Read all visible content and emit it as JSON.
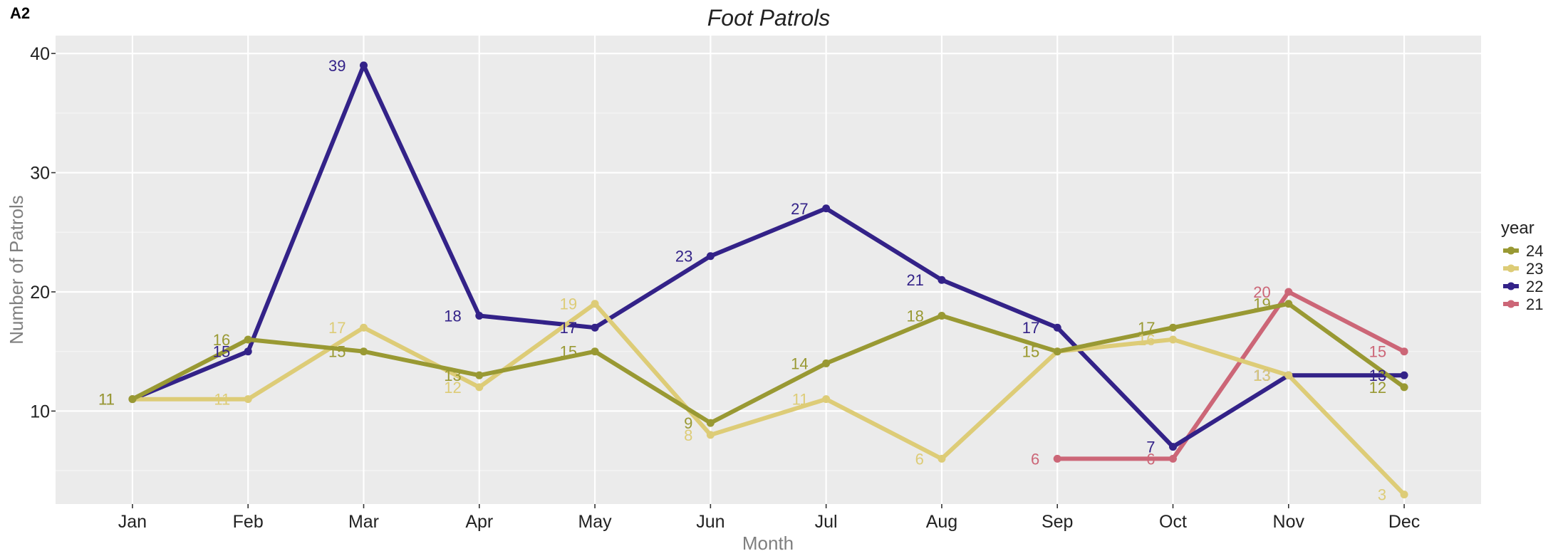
{
  "panel_tag": "A2",
  "chart_data": {
    "type": "line",
    "title": "Foot Patrols",
    "xlabel": "Month",
    "ylabel": "Number of Patrols",
    "categories": [
      "Jan",
      "Feb",
      "Mar",
      "Apr",
      "May",
      "Jun",
      "Jul",
      "Aug",
      "Sep",
      "Oct",
      "Nov",
      "Dec"
    ],
    "ylim": [
      2.2,
      41.5
    ],
    "yticks": [
      10,
      20,
      30,
      40
    ],
    "yticks_labels": [
      "10",
      "20",
      "30",
      "40"
    ],
    "grid": true,
    "legend": {
      "title": "year",
      "position": "right"
    },
    "series": [
      {
        "name": "24",
        "color": "#999933",
        "values": [
          11,
          16,
          15,
          13,
          15,
          9,
          14,
          18,
          15,
          17,
          19,
          12
        ]
      },
      {
        "name": "23",
        "color": "#DDCC77",
        "values": [
          11,
          11,
          17,
          12,
          19,
          8,
          11,
          6,
          15,
          16,
          13,
          3
        ]
      },
      {
        "name": "22",
        "color": "#332288",
        "values": [
          11,
          15,
          39,
          18,
          17,
          23,
          27,
          21,
          17,
          7,
          13,
          13
        ]
      },
      {
        "name": "21",
        "color": "#CC6677",
        "values": [
          null,
          null,
          null,
          null,
          null,
          null,
          null,
          null,
          6,
          6,
          20,
          15
        ]
      }
    ]
  }
}
